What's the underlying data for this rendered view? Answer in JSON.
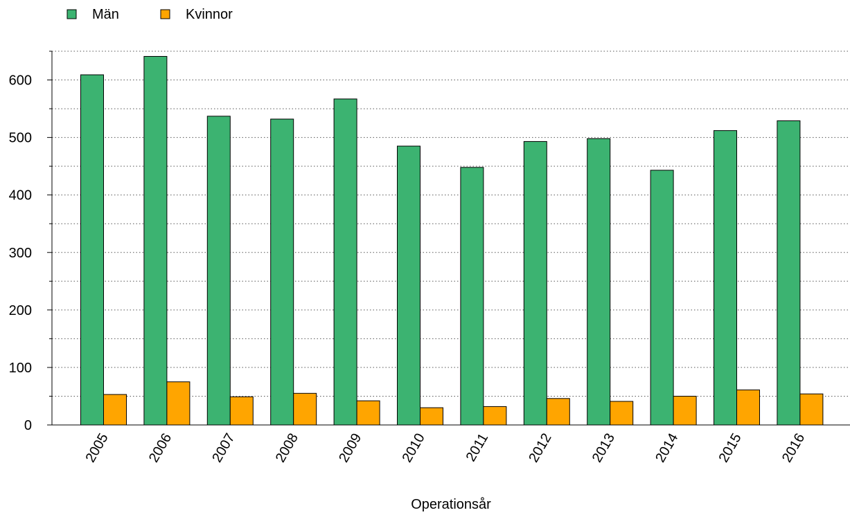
{
  "chart_data": {
    "type": "bar",
    "categories": [
      "2005",
      "2006",
      "2007",
      "2008",
      "2009",
      "2010",
      "2011",
      "2012",
      "2013",
      "2014",
      "2015",
      "2016"
    ],
    "series": [
      {
        "name": "Män",
        "color": "#3cb371",
        "values": [
          609,
          641,
          537,
          532,
          567,
          485,
          448,
          493,
          498,
          443,
          512,
          529
        ]
      },
      {
        "name": "Kvinnor",
        "color": "#ffa500",
        "values": [
          53,
          75,
          49,
          55,
          42,
          30,
          32,
          46,
          41,
          50,
          61,
          54
        ]
      }
    ],
    "title": "",
    "xlabel": "Operationsår",
    "ylabel": "",
    "ylim": [
      0,
      650
    ],
    "yticks": [
      "0",
      "100",
      "200",
      "300",
      "400",
      "500",
      "600"
    ],
    "grid": true,
    "legend_position": "top-left"
  }
}
